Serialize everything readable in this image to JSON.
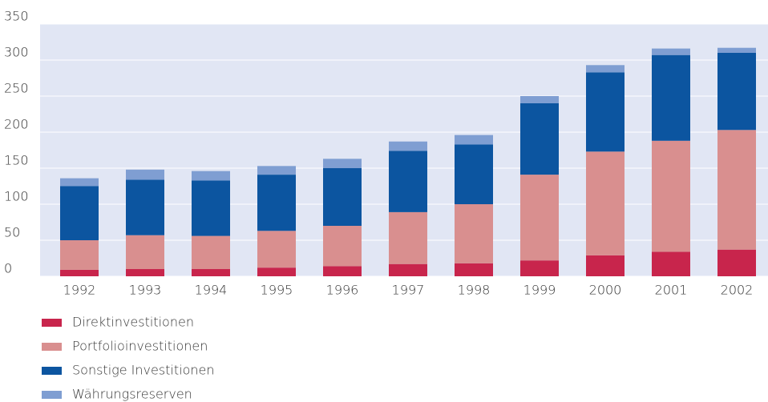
{
  "chart_data": {
    "type": "stacked_bar",
    "categories": [
      "1992",
      "1993",
      "1994",
      "1995",
      "1996",
      "1997",
      "1998",
      "1999",
      "2000",
      "2001",
      "2002"
    ],
    "series": [
      {
        "name": "Direktinvestitionen",
        "color": "#c8254c",
        "values": [
          9,
          10,
          10,
          12,
          14,
          17,
          18,
          22,
          29,
          34,
          37
        ]
      },
      {
        "name": "Portfolioinvestitionen",
        "color": "#d98f8f",
        "values": [
          41,
          47,
          46,
          51,
          56,
          72,
          82,
          119,
          144,
          154,
          166
        ]
      },
      {
        "name": "Sonstige Investitionen",
        "color": "#0c55a0",
        "values": [
          75,
          77,
          77,
          78,
          80,
          85,
          83,
          99,
          110,
          119,
          107
        ]
      },
      {
        "name": "Währungsreserven",
        "color": "#7f9ed2",
        "values": [
          11,
          14,
          13,
          12,
          13,
          13,
          13,
          10,
          10,
          9,
          7
        ]
      }
    ],
    "ylim": [
      0,
      350
    ],
    "yticks": [
      0,
      50,
      100,
      150,
      200,
      250,
      300,
      350
    ],
    "grid": true,
    "legend": "bottom-left"
  }
}
